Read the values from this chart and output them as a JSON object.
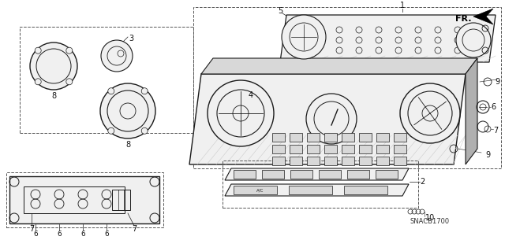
{
  "background_color": "#ffffff",
  "fig_width": 6.4,
  "fig_height": 3.19,
  "dpi": 100,
  "watermark": "SNACB1700",
  "line_color": "#1a1a1a",
  "light_line": "#555555",
  "fill_light": "#f0f0f0",
  "fill_mid": "#d8d8d8",
  "fill_dark": "#b0b0b0"
}
